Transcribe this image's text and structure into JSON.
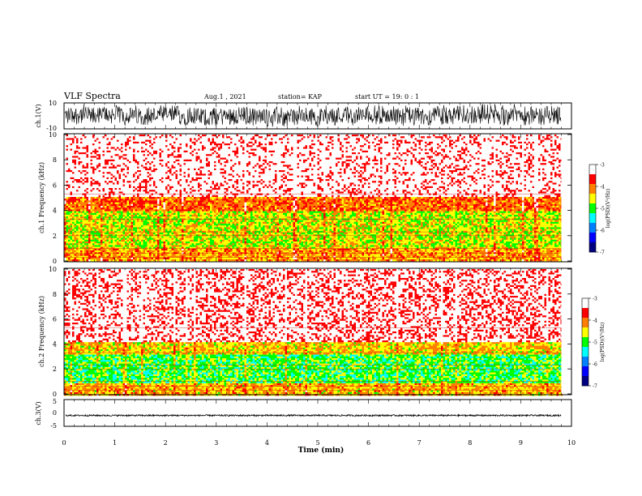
{
  "header": {
    "title": "VLF Spectra",
    "date": "Aug.1 , 2021",
    "station": "station= KAP",
    "start": "start UT = 19: 0 : 1"
  },
  "colors": {
    "scale": [
      "#000080",
      "#0000ff",
      "#0080ff",
      "#00ffff",
      "#00ff00",
      "#ffff00",
      "#ff8000",
      "#ff0000",
      "#ffffff"
    ],
    "trace": "#000000"
  },
  "chart_data": [
    {
      "type": "line",
      "panel": "ch1-waveform",
      "ylabel": "ch.1(V)",
      "ylim": [
        -10,
        10
      ],
      "y_ticks": [
        "10",
        "-10"
      ],
      "description_values": {
        "amplitude_range": [
          -10,
          10
        ]
      }
    },
    {
      "type": "heatmap",
      "panel": "ch1-spectrogram",
      "ylabel": "ch.1 Frequency (kHz)",
      "ylim": [
        0,
        10
      ],
      "y_ticks": [
        "0",
        "2",
        "4",
        "6",
        "8",
        "10"
      ],
      "colorbar": {
        "label": "log(PSD)(V²/Hz)",
        "range": [
          -7,
          -3
        ],
        "ticks": [
          "-3",
          "-4",
          "-5",
          "-6",
          "-7"
        ]
      },
      "bands": [
        {
          "f": [
            0,
            1.0
          ],
          "level": -4.2
        },
        {
          "f": [
            1.0,
            4.0
          ],
          "level": -4.6
        },
        {
          "f": [
            4.0,
            5.2
          ],
          "level": -4.0
        },
        {
          "f": [
            5.2,
            10
          ],
          "level": -3.2
        }
      ]
    },
    {
      "type": "heatmap",
      "panel": "ch2-spectrogram",
      "ylabel": "ch.2 Frequency (kHz)",
      "ylim": [
        0,
        10
      ],
      "y_ticks": [
        "0",
        "2",
        "4",
        "6",
        "8",
        "10"
      ],
      "colorbar": {
        "label": "log(PSD)(V²/Hz)",
        "range": [
          -7,
          -3
        ],
        "ticks": [
          "-3",
          "-4",
          "-5",
          "-6",
          "-7"
        ]
      },
      "bands": [
        {
          "f": [
            0,
            1.0
          ],
          "level": -4.3
        },
        {
          "f": [
            1.0,
            3.2
          ],
          "level": -5.0
        },
        {
          "f": [
            3.2,
            4.2
          ],
          "level": -4.4
        },
        {
          "f": [
            4.2,
            10
          ],
          "level": -3.3
        }
      ]
    },
    {
      "type": "line",
      "panel": "ch3-waveform",
      "ylabel": "ch.3(V)",
      "ylim": [
        -5,
        5
      ],
      "y_ticks": [
        "5",
        "0",
        "-5"
      ],
      "description_values": {
        "level": -1,
        "amplitude": 0.3
      }
    }
  ],
  "xaxis": {
    "label": "Time (min)",
    "xlim": [
      0,
      10
    ],
    "ticks": [
      "0",
      "1",
      "2",
      "3",
      "4",
      "5",
      "6",
      "7",
      "8",
      "9",
      "10"
    ],
    "data_end": 9.8
  }
}
